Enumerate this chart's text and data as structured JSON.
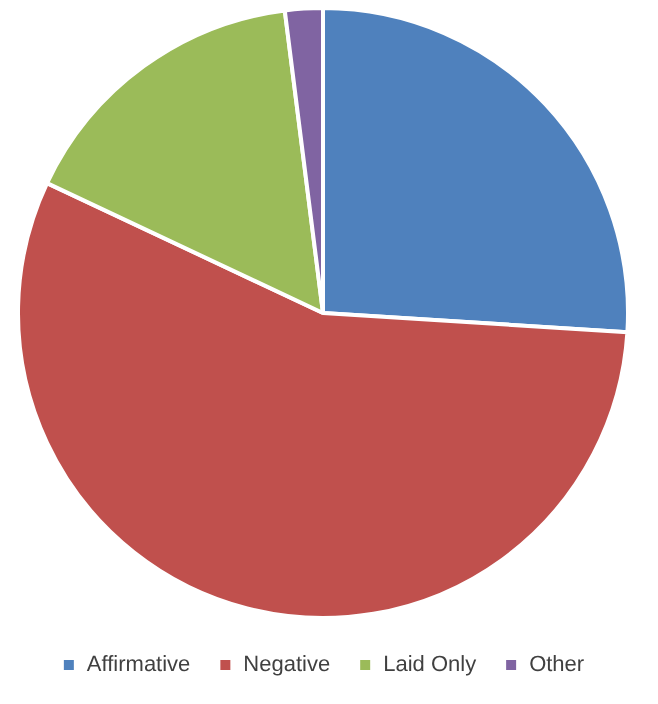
{
  "chart_data": {
    "type": "pie",
    "categories": [
      "Affirmative",
      "Negative",
      "Laid Only",
      "Other"
    ],
    "values": [
      26,
      56,
      16,
      2
    ],
    "colors": [
      "#4f81bd",
      "#c0504d",
      "#9bbb59",
      "#8064a2"
    ],
    "legend": "bottom"
  }
}
